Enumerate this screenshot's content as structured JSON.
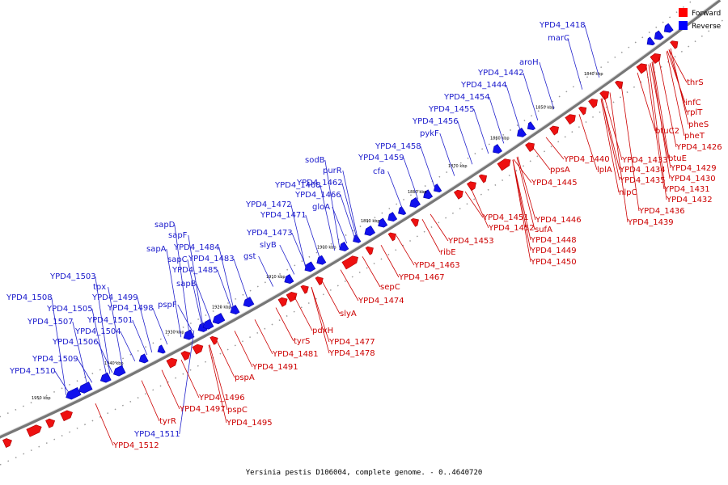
{
  "caption": "Yersinia pestis D106004, complete genome. - 0..4640720",
  "legend": [
    {
      "label": "Forward",
      "color": "#ff0000"
    },
    {
      "label": "Reverse",
      "color": "#0000ff"
    }
  ],
  "ticks": [
    "1840 kbp",
    "1850 kbp",
    "1860 kbp",
    "1870 kbp",
    "1880 kbp",
    "1890 kbp",
    "1900 kbp",
    "1910 kbp",
    "1920 kbp",
    "1930 kbp",
    "1940 kbp",
    "1950 kbp"
  ],
  "reverse_labels": [
    "YPD4_1418",
    "marC",
    "aroH",
    "YPD4_1442",
    "YPD4_1444",
    "YPD4_1454",
    "YPD4_1455",
    "YPD4_1456",
    "pykF",
    "YPD4_1458",
    "YPD4_1459",
    "cfa",
    "sodB",
    "purR",
    "YPD4_1462",
    "YPD4_1468",
    "YPD4_1466",
    "gloA",
    "YPD4_1472",
    "YPD4_1471",
    "YPD4_1473",
    "slyB",
    "gst",
    "sapD",
    "sapF",
    "sapA",
    "YPD4_1484",
    "sapC",
    "YPD4_1483",
    "YPD4_1485",
    "sapB",
    "YPD4_1503",
    "tpx",
    "YPD4_1508",
    "YPD4_1499",
    "YPD4_1505",
    "YPD4_1498",
    "pspF",
    "YPD4_1501",
    "YPD4_1507",
    "YPD4_1504",
    "YPD4_1506",
    "YPD4_1509",
    "YPD4_1510",
    "YPD4_1511"
  ],
  "forward_labels": [
    "thrS",
    "infC",
    "rplT",
    "pheS",
    "btuC2",
    "pheT",
    "YPD4_1426",
    "btuE",
    "YPD4_1433",
    "YPD4_1429",
    "YPD4_1440",
    "lplA",
    "YPD4_1434",
    "YPD4_1430",
    "YPD4_1435",
    "YPD4_1431",
    "nlpC",
    "YPD4_1432",
    "YPD4_1436",
    "YPD4_1439",
    "ppsA",
    "YPD4_1445",
    "YPD4_1451",
    "YPD4_1446",
    "sufA",
    "YPD4_1452",
    "YPD4_1448",
    "YPD4_1453",
    "YPD4_1449",
    "YPD4_1450",
    "ribE",
    "YPD4_1463",
    "YPD4_1467",
    "sepC",
    "YPD4_1474",
    "slyA",
    "pdxH",
    "tyrS",
    "YPD4_1477",
    "YPD4_1481",
    "YPD4_1478",
    "YPD4_1491",
    "pspA",
    "YPD4_1496",
    "YPD4_1497",
    "pspC",
    "YPD4_1495",
    "tyrR",
    "YPD4_1512"
  ]
}
